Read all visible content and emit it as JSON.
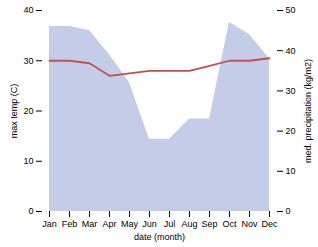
{
  "chart_data": {
    "type": "line",
    "categories": [
      "Jan",
      "Feb",
      "Mar",
      "Apr",
      "May",
      "Jun",
      "Jul",
      "Aug",
      "Sep",
      "Oct",
      "Nov",
      "Dec"
    ],
    "series": [
      {
        "type": "area",
        "axis": "y2",
        "color": "#c5cce8",
        "values": [
          46,
          46,
          45,
          39,
          32,
          18,
          18,
          23,
          23,
          47,
          44,
          38
        ]
      },
      {
        "type": "line",
        "color": "#c0504d",
        "values": [
          30.0,
          30.0,
          29.5,
          27.0,
          27.5,
          28.0,
          28.0,
          28.0,
          29.0,
          30.0,
          30.0,
          30.5
        ]
      }
    ],
    "xlabel": "date (month)",
    "ylabel": "max temp (C)",
    "y2label": "med. precipitation (kg/m2)",
    "ylim": [
      0,
      40
    ],
    "yticks": [
      0,
      10,
      20,
      30,
      40
    ],
    "y2lim": [
      0,
      50
    ],
    "y2ticks": [
      0,
      10,
      20,
      30,
      40,
      50
    ],
    "grid": false
  }
}
